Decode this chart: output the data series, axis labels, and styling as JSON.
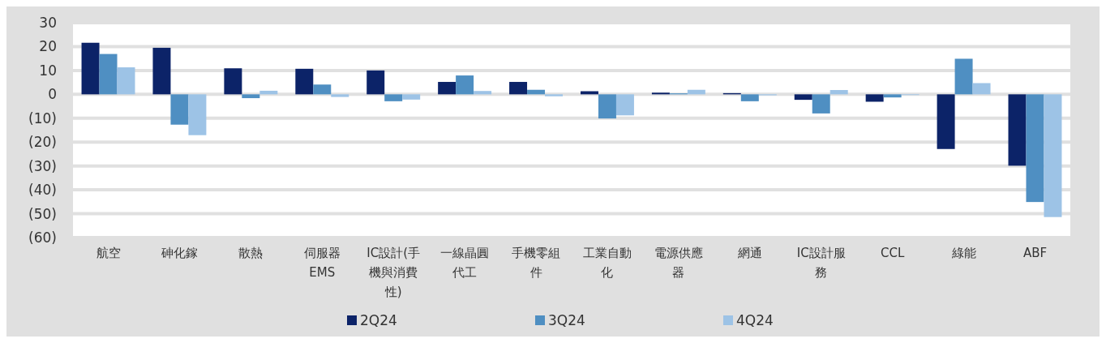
{
  "chart_data": {
    "type": "bar",
    "categories": [
      "航空",
      "砷化鎵",
      "散熱",
      "伺服器EMS",
      "IC設計(手機與消費性)",
      "一線晶圓代工",
      "手機零組件",
      "工業自動化",
      "電源供應器",
      "網通",
      "IC設計服務",
      "CCL",
      "綠能",
      "ABF"
    ],
    "series": [
      {
        "name": "2Q24",
        "color": "#0c2368",
        "values": [
          21.6,
          19.5,
          10.9,
          10.7,
          10,
          5.2,
          5.2,
          1.3,
          0.7,
          0.5,
          -2.3,
          -3.1,
          -22.9,
          -29.9
        ]
      },
      {
        "name": "3Q24",
        "color": "#4f8fc2",
        "values": [
          16.9,
          -12.7,
          -1.6,
          4.1,
          -2.9,
          7.9,
          1.9,
          -10.1,
          0.4,
          -2.9,
          -8,
          -1.3,
          14.9,
          -45.1
        ]
      },
      {
        "name": "4Q24",
        "color": "#9dc3e6",
        "values": [
          11.3,
          -17.1,
          1.5,
          -1.1,
          -2.2,
          1.4,
          -0.8,
          -8.8,
          1.9,
          -0.4,
          1.8,
          -0.3,
          4.7,
          -51.4
        ]
      }
    ],
    "ylim": [
      -60,
      30
    ],
    "yticks": [
      30,
      20,
      10,
      0,
      {
        "value": -10,
        "label": "(10)"
      },
      {
        "value": -20,
        "label": "(20)"
      },
      {
        "value": -30,
        "label": "(30)"
      },
      {
        "value": -40,
        "label": "(40)"
      },
      {
        "value": -50,
        "label": "(50)"
      },
      {
        "value": -60,
        "label": "(60)"
      }
    ],
    "grid": "y",
    "legend": "bottom"
  }
}
